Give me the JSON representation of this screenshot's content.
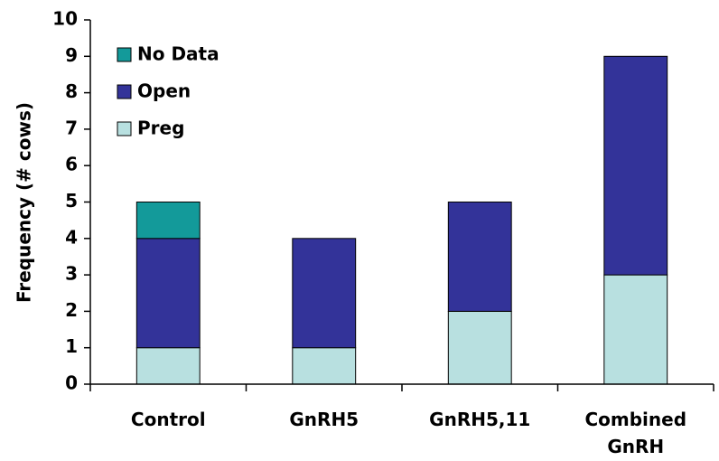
{
  "chart_data": {
    "type": "stacked_bar",
    "categories": [
      "Control",
      "GnRH5",
      "GnRH5,11",
      "Combined GnRH"
    ],
    "series": [
      {
        "name": "Preg",
        "color": "#b8e0e0",
        "values": [
          1,
          1,
          2,
          3
        ]
      },
      {
        "name": "Open",
        "color": "#333399",
        "values": [
          3,
          3,
          3,
          6
        ]
      },
      {
        "name": "No Data",
        "color": "#139a9a",
        "values": [
          1,
          0,
          0,
          0
        ]
      }
    ],
    "ylabel": "Frequency (# cows)",
    "ylim": [
      0,
      10
    ],
    "yticks": [
      0,
      1,
      2,
      3,
      4,
      5,
      6,
      7,
      8,
      9,
      10
    ],
    "legend": "upper-left"
  }
}
